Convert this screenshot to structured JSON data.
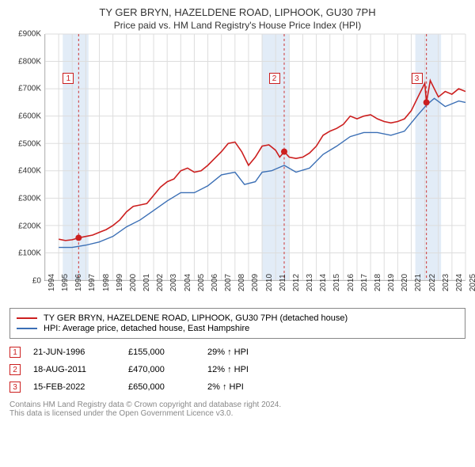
{
  "title_main": "TY GER BRYN, HAZELDENE ROAD, LIPHOOK, GU30 7PH",
  "title_sub": "Price paid vs. HM Land Registry's House Price Index (HPI)",
  "chart": {
    "type": "line",
    "background_color": "#ffffff",
    "grid_color": "#dddddd",
    "highlight_band_color": "#e2ecf7",
    "dashed_line_color": "#cc3333",
    "axis_color": "#999999",
    "text_color": "#333333",
    "x_years": [
      1994,
      1995,
      1996,
      1997,
      1998,
      1999,
      2000,
      2001,
      2002,
      2003,
      2004,
      2005,
      2006,
      2007,
      2008,
      2009,
      2010,
      2011,
      2012,
      2013,
      2014,
      2015,
      2016,
      2017,
      2018,
      2019,
      2020,
      2021,
      2022,
      2023,
      2024,
      2025
    ],
    "y_min": 0,
    "y_max": 900000,
    "y_tick_step": 100000,
    "y_tick_labels": [
      "£0",
      "£100K",
      "£200K",
      "£300K",
      "£400K",
      "£500K",
      "£600K",
      "£700K",
      "£800K",
      "£900K"
    ],
    "highlight_bands": [
      [
        1995.3,
        1997.2
      ],
      [
        2010.0,
        2012.0
      ],
      [
        2021.3,
        2023.2
      ]
    ],
    "series": [
      {
        "name": "property",
        "label": "TY GER BRYN, HAZELDENE ROAD, LIPHOOK, GU30 7PH (detached house)",
        "color": "#cc1f1f",
        "line_width": 1.6,
        "points": [
          [
            1995.0,
            150000
          ],
          [
            1995.5,
            145000
          ],
          [
            1996.0,
            148000
          ],
          [
            1996.47,
            155000
          ],
          [
            1997.0,
            160000
          ],
          [
            1997.5,
            165000
          ],
          [
            1998.0,
            175000
          ],
          [
            1998.5,
            185000
          ],
          [
            1999.0,
            200000
          ],
          [
            1999.5,
            220000
          ],
          [
            2000.0,
            250000
          ],
          [
            2000.5,
            270000
          ],
          [
            2001.0,
            275000
          ],
          [
            2001.5,
            280000
          ],
          [
            2002.0,
            310000
          ],
          [
            2002.5,
            340000
          ],
          [
            2003.0,
            360000
          ],
          [
            2003.5,
            370000
          ],
          [
            2004.0,
            400000
          ],
          [
            2004.5,
            410000
          ],
          [
            2005.0,
            395000
          ],
          [
            2005.5,
            400000
          ],
          [
            2006.0,
            420000
          ],
          [
            2006.5,
            445000
          ],
          [
            2007.0,
            470000
          ],
          [
            2007.5,
            500000
          ],
          [
            2008.0,
            505000
          ],
          [
            2008.5,
            470000
          ],
          [
            2009.0,
            420000
          ],
          [
            2009.5,
            450000
          ],
          [
            2010.0,
            490000
          ],
          [
            2010.5,
            495000
          ],
          [
            2011.0,
            475000
          ],
          [
            2011.3,
            450000
          ],
          [
            2011.63,
            470000
          ],
          [
            2012.0,
            450000
          ],
          [
            2012.5,
            445000
          ],
          [
            2013.0,
            450000
          ],
          [
            2013.5,
            465000
          ],
          [
            2014.0,
            490000
          ],
          [
            2014.5,
            530000
          ],
          [
            2015.0,
            545000
          ],
          [
            2015.5,
            555000
          ],
          [
            2016.0,
            570000
          ],
          [
            2016.5,
            600000
          ],
          [
            2017.0,
            590000
          ],
          [
            2017.5,
            600000
          ],
          [
            2018.0,
            605000
          ],
          [
            2018.5,
            590000
          ],
          [
            2019.0,
            580000
          ],
          [
            2019.5,
            575000
          ],
          [
            2020.0,
            580000
          ],
          [
            2020.5,
            590000
          ],
          [
            2021.0,
            620000
          ],
          [
            2021.5,
            670000
          ],
          [
            2022.0,
            720000
          ],
          [
            2022.12,
            650000
          ],
          [
            2022.4,
            730000
          ],
          [
            2022.7,
            700000
          ],
          [
            2023.0,
            670000
          ],
          [
            2023.5,
            690000
          ],
          [
            2024.0,
            680000
          ],
          [
            2024.5,
            700000
          ],
          [
            2025.0,
            690000
          ]
        ]
      },
      {
        "name": "hpi",
        "label": "HPI: Average price, detached house, East Hampshire",
        "color": "#3b6fb5",
        "line_width": 1.4,
        "points": [
          [
            1995.0,
            120000
          ],
          [
            1996.0,
            120000
          ],
          [
            1997.0,
            128000
          ],
          [
            1998.0,
            140000
          ],
          [
            1999.0,
            160000
          ],
          [
            2000.0,
            195000
          ],
          [
            2001.0,
            220000
          ],
          [
            2002.0,
            255000
          ],
          [
            2003.0,
            290000
          ],
          [
            2004.0,
            320000
          ],
          [
            2005.0,
            320000
          ],
          [
            2006.0,
            345000
          ],
          [
            2007.0,
            385000
          ],
          [
            2008.0,
            395000
          ],
          [
            2008.7,
            350000
          ],
          [
            2009.5,
            360000
          ],
          [
            2010.0,
            395000
          ],
          [
            2010.7,
            400000
          ],
          [
            2011.63,
            420000
          ],
          [
            2012.5,
            395000
          ],
          [
            2013.5,
            410000
          ],
          [
            2014.5,
            460000
          ],
          [
            2015.5,
            490000
          ],
          [
            2016.5,
            525000
          ],
          [
            2017.5,
            540000
          ],
          [
            2018.5,
            540000
          ],
          [
            2019.5,
            530000
          ],
          [
            2020.5,
            545000
          ],
          [
            2021.5,
            605000
          ],
          [
            2022.12,
            640000
          ],
          [
            2022.7,
            665000
          ],
          [
            2023.5,
            635000
          ],
          [
            2024.5,
            655000
          ],
          [
            2025.0,
            650000
          ]
        ]
      }
    ],
    "sale_markers": [
      {
        "n": "1",
        "x": 1996.47,
        "y": 155000,
        "box_y": 760000
      },
      {
        "n": "2",
        "x": 2011.63,
        "y": 470000,
        "box_y": 760000
      },
      {
        "n": "3",
        "x": 2022.12,
        "y": 650000,
        "box_y": 760000
      }
    ],
    "marker_box_border": "#cc1f1f",
    "marker_box_text": "#cc1f1f",
    "sale_point_color": "#cc1f1f",
    "sale_point_radius": 4
  },
  "legend": {
    "rows": [
      {
        "color": "#cc1f1f",
        "label": "TY GER BRYN, HAZELDENE ROAD, LIPHOOK, GU30 7PH (detached house)"
      },
      {
        "color": "#3b6fb5",
        "label": "HPI: Average price, detached house, East Hampshire"
      }
    ]
  },
  "sales": [
    {
      "n": "1",
      "date": "21-JUN-1996",
      "price": "£155,000",
      "delta": "29% ↑ HPI"
    },
    {
      "n": "2",
      "date": "18-AUG-2011",
      "price": "£470,000",
      "delta": "12% ↑ HPI"
    },
    {
      "n": "3",
      "date": "15-FEB-2022",
      "price": "£650,000",
      "delta": "2% ↑ HPI"
    }
  ],
  "sale_marker_border": "#cc1f1f",
  "sale_marker_text": "#cc1f1f",
  "footnote_line1": "Contains HM Land Registry data © Crown copyright and database right 2024.",
  "footnote_line2": "This data is licensed under the Open Government Licence v3.0."
}
